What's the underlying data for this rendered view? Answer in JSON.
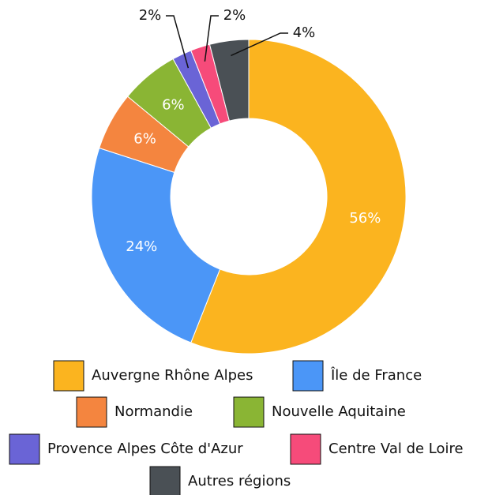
{
  "chart_data": {
    "type": "pie",
    "categories": [
      "Auvergne Rhône Alpes",
      "Île de France",
      "Normandie",
      "Nouvelle Aquitaine",
      "Provence Alpes Côte d'Azur",
      "Centre Val de Loire",
      "Autres régions"
    ],
    "values": [
      56,
      24,
      6,
      6,
      2,
      2,
      4
    ],
    "value_labels": [
      "56%",
      "24%",
      "6%",
      "6%",
      "2%",
      "2%",
      "4%"
    ],
    "colors": [
      "#fbb41f",
      "#4b96f7",
      "#f4853f",
      "#8ab534",
      "#6a64d6",
      "#f64b7a",
      "#4a5055"
    ]
  }
}
